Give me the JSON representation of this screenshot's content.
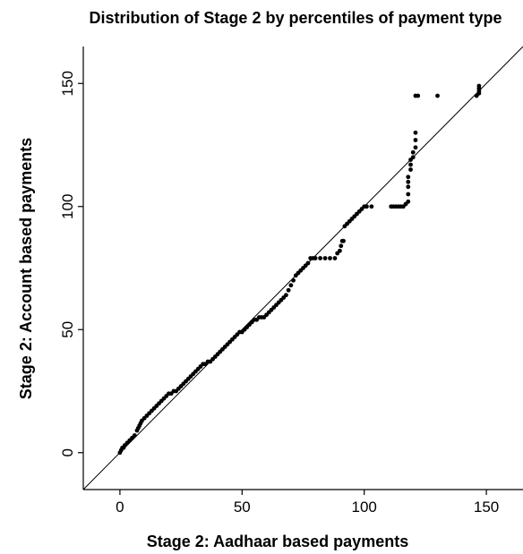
{
  "chart_data": {
    "type": "scatter",
    "title": "Distribution of Stage 2 by percentiles of payment type",
    "xlabel": "Stage 2: Aadhaar based payments",
    "ylabel": "Stage 2: Account based payments",
    "xlim": [
      -15,
      165
    ],
    "ylim": [
      -15,
      165
    ],
    "x_ticks": [
      0,
      50,
      100,
      150
    ],
    "y_ticks": [
      0,
      50,
      100,
      150
    ],
    "x_tick_labels": [
      "0",
      "50",
      "100",
      "150"
    ],
    "y_tick_labels": [
      "0",
      "50",
      "100",
      "150"
    ],
    "grid": false,
    "reference_line": "45-degree line",
    "colors": {
      "points": "#000000",
      "line": "#000000",
      "axes": "#000000"
    },
    "series": [
      {
        "points": [
          [
            0,
            0
          ],
          [
            0.5,
            1
          ],
          [
            1,
            2
          ],
          [
            1.5,
            2
          ],
          [
            2,
            3
          ],
          [
            3,
            4
          ],
          [
            4,
            5
          ],
          [
            5,
            6
          ],
          [
            6,
            7
          ],
          [
            7,
            9
          ],
          [
            7.5,
            10
          ],
          [
            8,
            11
          ],
          [
            8.5,
            12
          ],
          [
            9,
            13
          ],
          [
            10,
            14
          ],
          [
            11,
            15
          ],
          [
            12,
            16
          ],
          [
            13,
            17
          ],
          [
            14,
            18
          ],
          [
            15,
            19
          ],
          [
            16,
            20
          ],
          [
            17,
            21
          ],
          [
            18,
            22
          ],
          [
            19,
            23
          ],
          [
            20,
            24
          ],
          [
            21,
            24
          ],
          [
            22,
            25
          ],
          [
            23,
            25
          ],
          [
            24,
            26
          ],
          [
            25,
            27
          ],
          [
            26,
            28
          ],
          [
            27,
            29
          ],
          [
            28,
            30
          ],
          [
            29,
            31
          ],
          [
            30,
            32
          ],
          [
            31,
            33
          ],
          [
            32,
            34
          ],
          [
            33,
            35
          ],
          [
            34,
            36
          ],
          [
            35,
            36
          ],
          [
            36,
            37
          ],
          [
            37,
            37
          ],
          [
            38,
            38
          ],
          [
            39,
            39
          ],
          [
            40,
            40
          ],
          [
            41,
            41
          ],
          [
            42,
            42
          ],
          [
            43,
            43
          ],
          [
            44,
            44
          ],
          [
            45,
            45
          ],
          [
            46,
            46
          ],
          [
            47,
            47
          ],
          [
            48,
            48
          ],
          [
            49,
            49
          ],
          [
            50,
            49
          ],
          [
            51,
            50
          ],
          [
            52,
            51
          ],
          [
            53,
            52
          ],
          [
            54,
            53
          ],
          [
            55,
            54
          ],
          [
            56,
            54
          ],
          [
            57,
            55
          ],
          [
            58,
            55
          ],
          [
            59,
            55
          ],
          [
            60,
            56
          ],
          [
            61,
            57
          ],
          [
            62,
            58
          ],
          [
            63,
            59
          ],
          [
            64,
            60
          ],
          [
            65,
            61
          ],
          [
            66,
            62
          ],
          [
            67,
            63
          ],
          [
            68,
            64
          ],
          [
            69,
            66
          ],
          [
            70,
            68
          ],
          [
            71,
            70
          ],
          [
            72,
            72
          ],
          [
            73,
            73
          ],
          [
            74,
            74
          ],
          [
            75,
            75
          ],
          [
            76,
            76
          ],
          [
            77,
            77
          ],
          [
            78,
            79
          ],
          [
            79,
            79
          ],
          [
            80,
            79
          ],
          [
            82,
            79
          ],
          [
            84,
            79
          ],
          [
            86,
            79
          ],
          [
            88,
            79
          ],
          [
            89,
            81
          ],
          [
            90,
            82
          ],
          [
            90.5,
            84
          ],
          [
            91,
            86
          ],
          [
            91.5,
            86
          ],
          [
            92,
            92
          ],
          [
            93,
            93
          ],
          [
            94,
            94
          ],
          [
            95,
            95
          ],
          [
            96,
            96
          ],
          [
            97,
            97
          ],
          [
            98,
            98
          ],
          [
            99,
            99
          ],
          [
            100,
            100
          ],
          [
            101,
            100
          ],
          [
            103,
            100
          ],
          [
            111,
            100
          ],
          [
            112,
            100
          ],
          [
            113,
            100
          ],
          [
            114,
            100
          ],
          [
            115,
            100
          ],
          [
            116,
            100
          ],
          [
            117,
            101
          ],
          [
            118,
            102
          ],
          [
            118,
            105
          ],
          [
            118,
            108
          ],
          [
            118,
            110
          ],
          [
            118,
            112
          ],
          [
            119,
            115
          ],
          [
            119,
            117
          ],
          [
            119,
            119
          ],
          [
            120,
            120
          ],
          [
            120,
            122
          ],
          [
            121,
            124
          ],
          [
            121,
            127
          ],
          [
            121,
            130
          ],
          [
            121,
            145
          ],
          [
            122,
            145
          ],
          [
            130,
            145
          ],
          [
            146,
            145
          ],
          [
            147,
            146
          ],
          [
            147,
            147
          ],
          [
            147,
            148
          ],
          [
            147,
            149
          ]
        ]
      }
    ]
  }
}
